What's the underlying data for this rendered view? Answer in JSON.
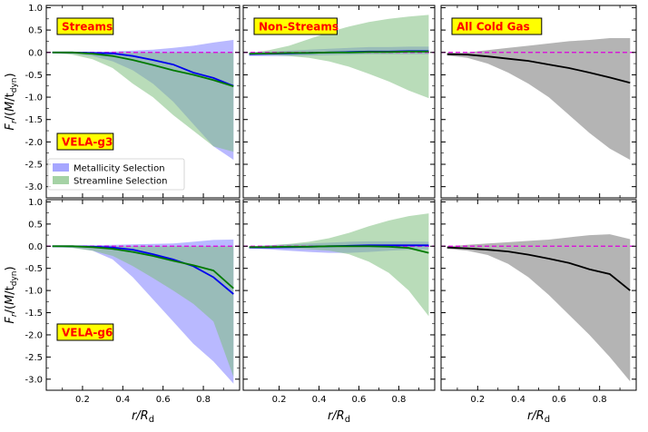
{
  "chart_data": {
    "type": "area",
    "figure_title": "",
    "xlabel_main": "r/R",
    "xlabel_sub": "d",
    "ylabel_main": "F",
    "ylabel_sub_r": "r",
    "ylabel_mid": "/(",
    "ylabel_M": "M",
    "ylabel_slash": "/t",
    "ylabel_sub_dyn": "dyn",
    "ylabel_close": ")",
    "xlim": [
      0.02,
      0.98
    ],
    "ylims": [
      [
        -3.25,
        1.05
      ],
      [
        -3.25,
        1.05
      ]
    ],
    "x_ticks": [
      0.2,
      0.4,
      0.6,
      0.8
    ],
    "x_tick_labels": [
      "0.2",
      "0.4",
      "0.6",
      "0.8"
    ],
    "y_ticks": [
      1.0,
      0.5,
      0.0,
      -0.5,
      -1.0,
      -1.5,
      -2.0,
      -2.5,
      -3.0
    ],
    "y_tick_labels": [
      "1.0",
      "0.5",
      "0.0",
      "-0.5",
      "-1.0",
      "-1.5",
      "-2.0",
      "-2.5",
      "-3.0"
    ],
    "column_labels": [
      "Streams",
      "Non-Streams",
      "All Cold Gas"
    ],
    "row_labels": [
      "VELA-g3",
      "VELA-g6"
    ],
    "legend": {
      "position": "lower-left",
      "entries": [
        {
          "label": "Metallicity Selection",
          "color": "#8080ff"
        },
        {
          "label": "Streamline Selection",
          "color": "#7fbf7f"
        }
      ]
    },
    "colors": {
      "metallicity_fill": "#8080ff",
      "metallicity_line": "#0000ee",
      "streamline_fill": "#7fbf7f",
      "streamline_line": "#007a00",
      "all_fill": "#8c8c8c",
      "all_line": "#000000",
      "zero_line": "#dd00dd",
      "label_box": "#ffff00",
      "label_text": "#ff0000"
    },
    "x": [
      0.05,
      0.15,
      0.25,
      0.35,
      0.45,
      0.55,
      0.65,
      0.75,
      0.85,
      0.95
    ],
    "panels": [
      {
        "row": 0,
        "col": 0,
        "label": "Streams",
        "row_label": "VELA-g3",
        "show_legend": true,
        "series": [
          {
            "name": "Metallicity Selection",
            "style": "metallicity",
            "median": [
              0.0,
              0.0,
              -0.01,
              -0.02,
              -0.08,
              -0.17,
              -0.27,
              -0.45,
              -0.57,
              -0.75
            ],
            "upper": [
              0.0,
              0.01,
              0.01,
              0.02,
              0.04,
              0.06,
              0.1,
              0.15,
              0.22,
              0.28
            ],
            "lower": [
              -0.01,
              -0.03,
              -0.08,
              -0.2,
              -0.4,
              -0.7,
              -1.1,
              -1.6,
              -2.1,
              -2.4
            ]
          },
          {
            "name": "Streamline Selection",
            "style": "streamline",
            "median": [
              0.0,
              0.0,
              -0.03,
              -0.08,
              -0.17,
              -0.28,
              -0.4,
              -0.5,
              -0.62,
              -0.76
            ],
            "upper": [
              0.0,
              0.0,
              0.0,
              0.0,
              0.0,
              0.0,
              0.0,
              0.0,
              0.0,
              0.0
            ],
            "lower": [
              -0.01,
              -0.05,
              -0.15,
              -0.35,
              -0.7,
              -1.0,
              -1.4,
              -1.75,
              -2.1,
              -2.22
            ]
          }
        ]
      },
      {
        "row": 0,
        "col": 1,
        "label": "Non-Streams",
        "row_label": "",
        "show_legend": false,
        "series": [
          {
            "name": "Metallicity Selection",
            "style": "metallicity",
            "median": [
              -0.04,
              -0.03,
              -0.02,
              -0.01,
              0.0,
              0.01,
              0.02,
              0.02,
              0.03,
              0.03
            ],
            "upper": [
              0.0,
              0.02,
              0.04,
              0.06,
              0.08,
              0.1,
              0.12,
              0.12,
              0.13,
              0.13
            ],
            "lower": [
              -0.08,
              -0.08,
              -0.08,
              -0.07,
              -0.06,
              -0.05,
              -0.04,
              -0.04,
              -0.04,
              -0.04
            ]
          },
          {
            "name": "Streamline Selection",
            "style": "streamline",
            "median": [
              -0.03,
              -0.02,
              -0.01,
              -0.01,
              0.0,
              0.0,
              0.01,
              0.01,
              0.02,
              0.02
            ],
            "upper": [
              -0.01,
              0.05,
              0.15,
              0.3,
              0.45,
              0.58,
              0.68,
              0.75,
              0.8,
              0.84
            ],
            "lower": [
              -0.05,
              -0.06,
              -0.08,
              -0.12,
              -0.2,
              -0.32,
              -0.48,
              -0.65,
              -0.85,
              -1.02
            ]
          }
        ]
      },
      {
        "row": 0,
        "col": 2,
        "label": "All Cold Gas",
        "row_label": "",
        "show_legend": false,
        "series": [
          {
            "name": "All Cold Gas",
            "style": "all",
            "median": [
              -0.04,
              -0.05,
              -0.09,
              -0.14,
              -0.19,
              -0.27,
              -0.35,
              -0.45,
              -0.56,
              -0.68
            ],
            "upper": [
              -0.01,
              0.0,
              0.05,
              0.1,
              0.15,
              0.2,
              0.25,
              0.28,
              0.32,
              0.32
            ],
            "lower": [
              -0.07,
              -0.12,
              -0.25,
              -0.45,
              -0.7,
              -1.0,
              -1.4,
              -1.8,
              -2.15,
              -2.4
            ]
          }
        ]
      },
      {
        "row": 1,
        "col": 0,
        "label": "",
        "row_label": "VELA-g6",
        "show_legend": false,
        "series": [
          {
            "name": "Metallicity Selection",
            "style": "metallicity",
            "median": [
              0.0,
              0.0,
              -0.01,
              -0.03,
              -0.08,
              -0.18,
              -0.3,
              -0.45,
              -0.7,
              -1.08
            ],
            "upper": [
              0.0,
              0.01,
              0.02,
              0.03,
              0.04,
              0.05,
              0.06,
              0.1,
              0.14,
              0.15
            ],
            "lower": [
              -0.01,
              -0.03,
              -0.1,
              -0.3,
              -0.7,
              -1.2,
              -1.7,
              -2.2,
              -2.6,
              -3.1
            ]
          },
          {
            "name": "Streamline Selection",
            "style": "streamline",
            "median": [
              0.0,
              0.0,
              -0.02,
              -0.06,
              -0.13,
              -0.22,
              -0.33,
              -0.43,
              -0.55,
              -0.95
            ],
            "upper": [
              0.0,
              0.0,
              0.0,
              0.0,
              0.0,
              0.0,
              0.0,
              0.0,
              0.0,
              0.0
            ],
            "lower": [
              -0.01,
              -0.04,
              -0.1,
              -0.22,
              -0.45,
              -0.72,
              -1.0,
              -1.3,
              -1.7,
              -2.95
            ]
          }
        ]
      },
      {
        "row": 1,
        "col": 1,
        "label": "",
        "row_label": "",
        "show_legend": false,
        "series": [
          {
            "name": "Metallicity Selection",
            "style": "metallicity",
            "median": [
              -0.03,
              -0.03,
              -0.02,
              -0.01,
              0.0,
              0.01,
              0.02,
              0.02,
              0.02,
              0.02
            ],
            "upper": [
              0.0,
              0.02,
              0.04,
              0.06,
              0.08,
              0.1,
              0.11,
              0.11,
              0.11,
              0.1
            ],
            "lower": [
              -0.05,
              -0.07,
              -0.1,
              -0.13,
              -0.15,
              -0.15,
              -0.13,
              -0.1,
              -0.08,
              -0.07
            ]
          },
          {
            "name": "Streamline Selection",
            "style": "streamline",
            "median": [
              -0.02,
              -0.02,
              -0.01,
              -0.01,
              0.0,
              0.0,
              0.0,
              -0.01,
              -0.04,
              -0.15
            ],
            "upper": [
              -0.01,
              0.02,
              0.05,
              0.1,
              0.18,
              0.3,
              0.45,
              0.58,
              0.68,
              0.74
            ],
            "lower": [
              -0.03,
              -0.04,
              -0.05,
              -0.07,
              -0.1,
              -0.18,
              -0.35,
              -0.6,
              -1.0,
              -1.58
            ]
          }
        ]
      },
      {
        "row": 1,
        "col": 2,
        "label": "",
        "row_label": "",
        "show_legend": false,
        "series": [
          {
            "name": "All Cold Gas",
            "style": "all",
            "median": [
              -0.03,
              -0.05,
              -0.08,
              -0.12,
              -0.19,
              -0.28,
              -0.38,
              -0.52,
              -0.63,
              -1.0
            ],
            "upper": [
              0.0,
              0.03,
              0.06,
              0.09,
              0.12,
              0.15,
              0.2,
              0.25,
              0.27,
              0.16
            ],
            "lower": [
              -0.06,
              -0.1,
              -0.2,
              -0.4,
              -0.7,
              -1.1,
              -1.55,
              -2.0,
              -2.5,
              -3.05
            ]
          }
        ]
      }
    ]
  }
}
